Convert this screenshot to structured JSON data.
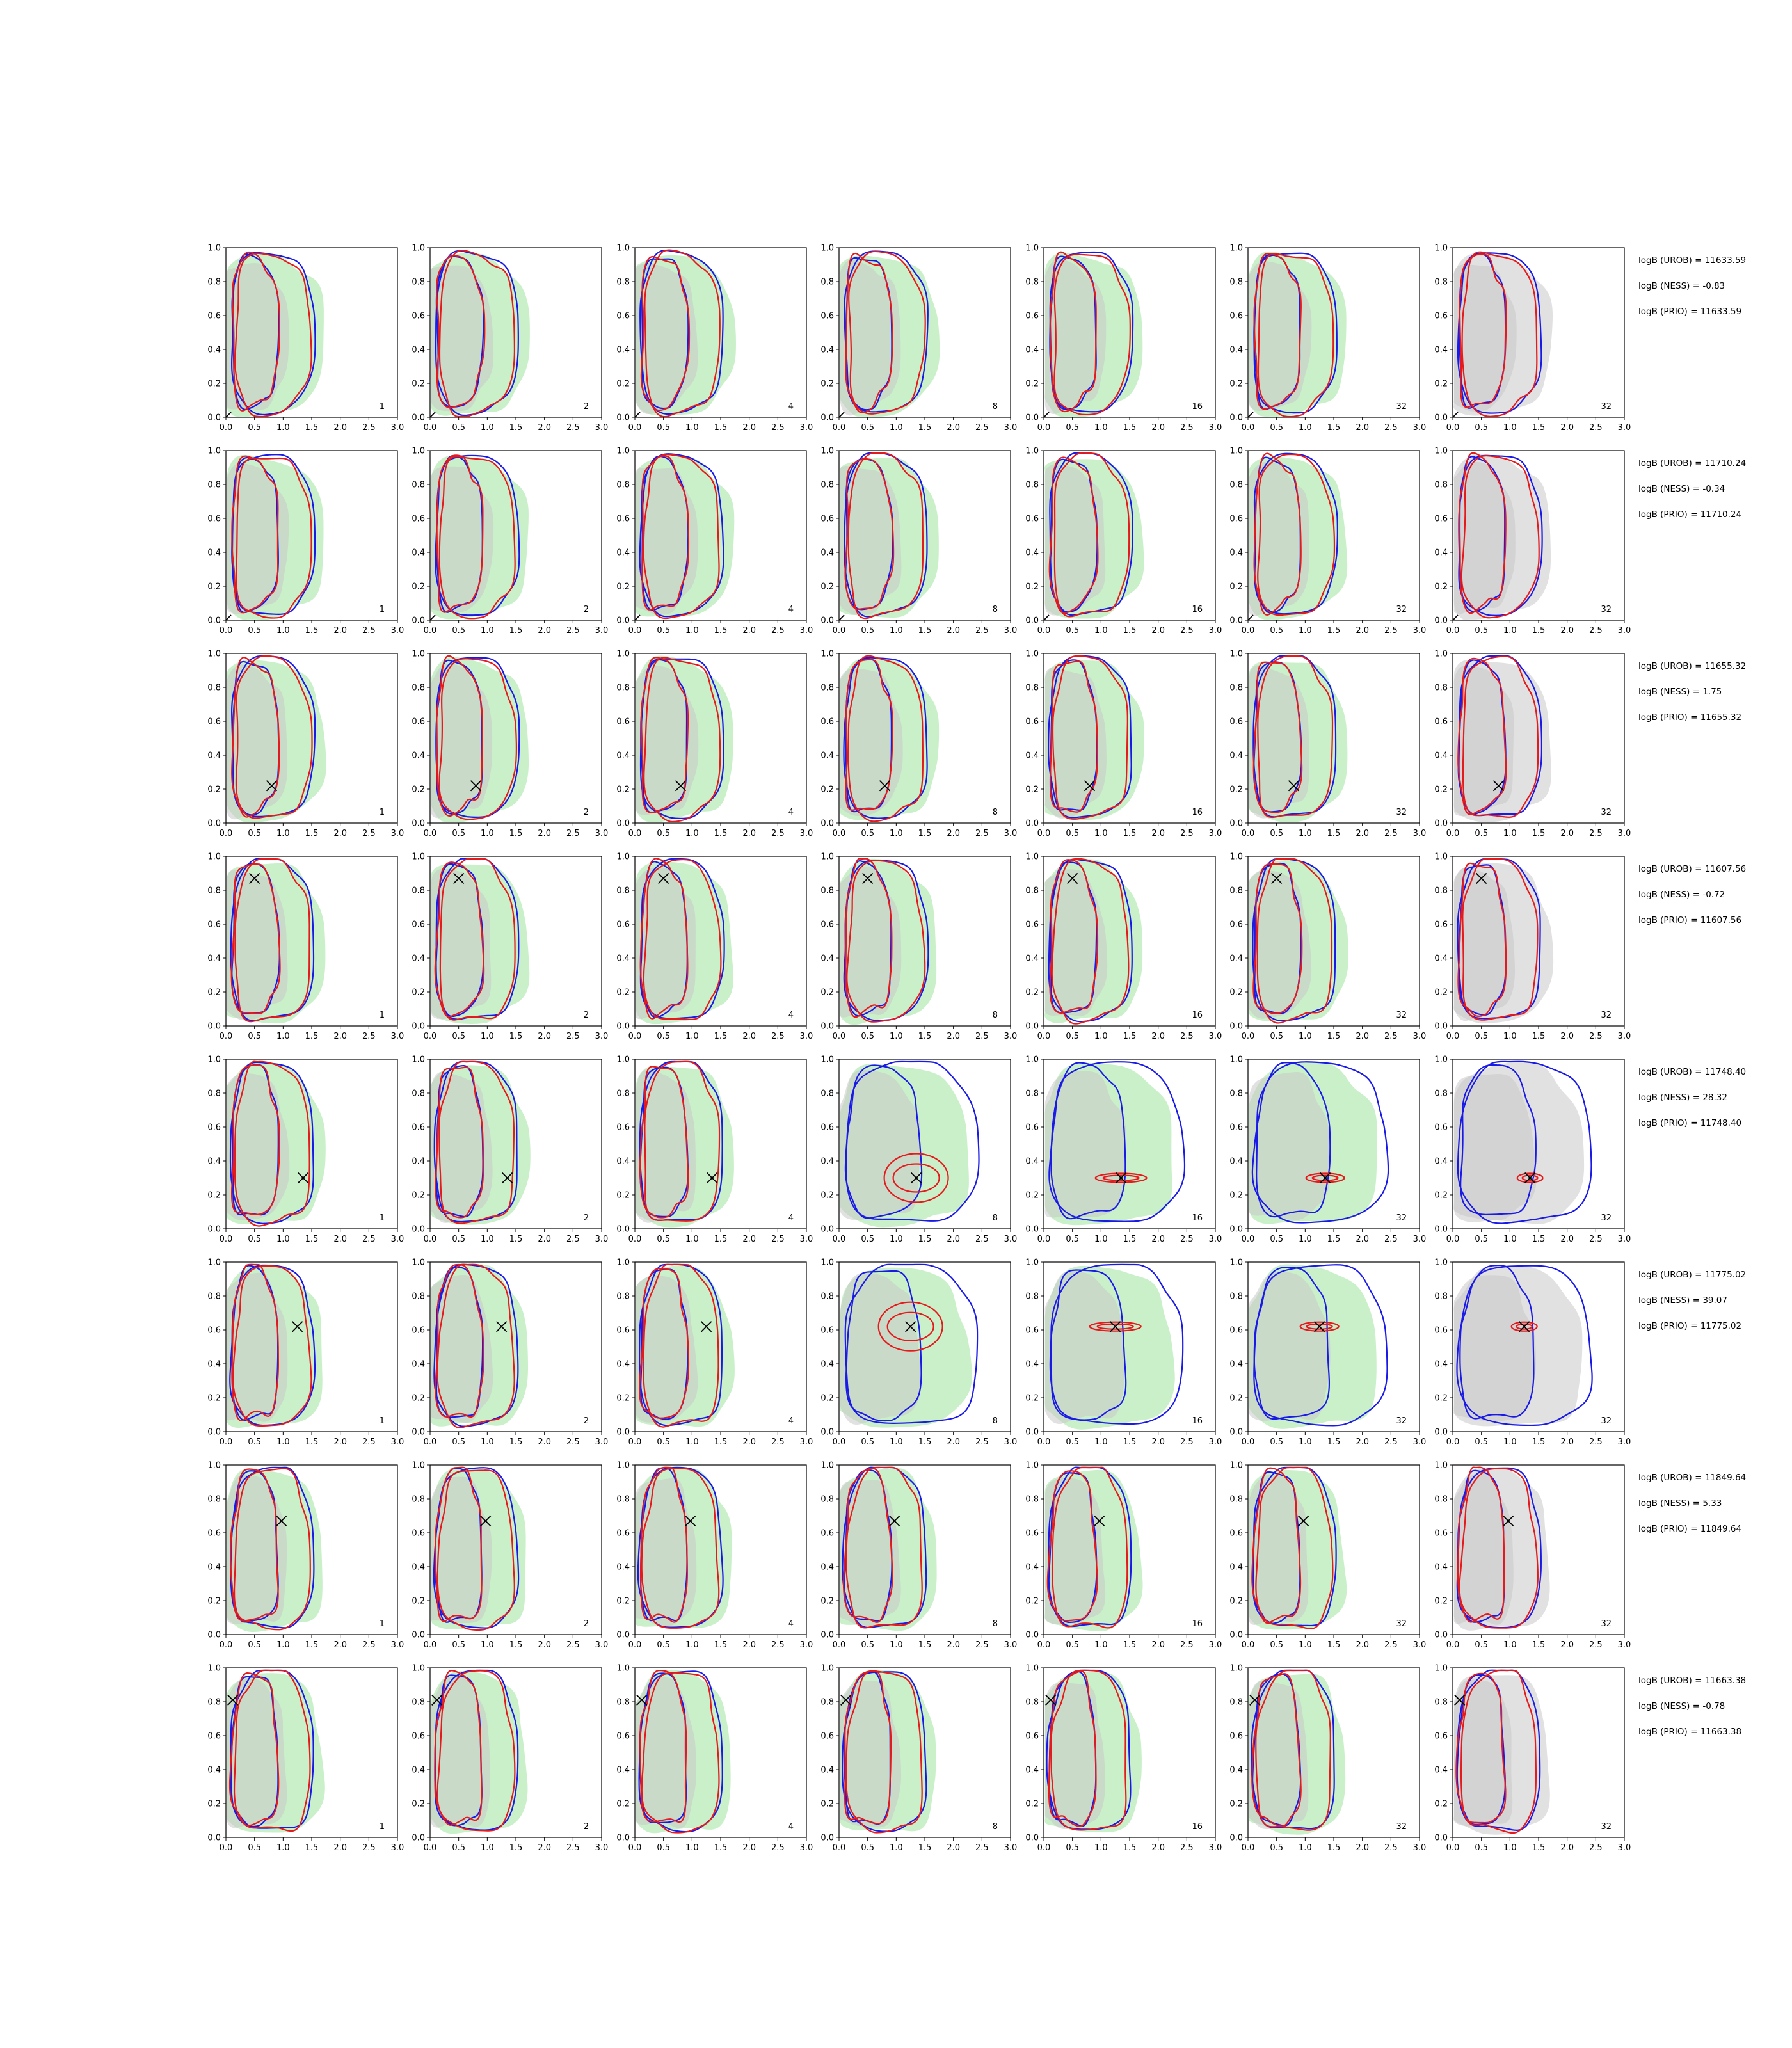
{
  "chart_data": {
    "type": "contour-grid",
    "xlim": [
      0.0,
      3.0
    ],
    "ylim": [
      0.0,
      1.0
    ],
    "x_ticks": [
      "0.0",
      "0.5",
      "1.0",
      "1.5",
      "2.0",
      "2.5",
      "3.0"
    ],
    "y_ticks": [
      "0.0",
      "0.2",
      "0.4",
      "0.6",
      "0.8",
      "1.0"
    ],
    "grid": false,
    "colors": {
      "fill_green": "#a6e6a6",
      "fill_grey": "#c8c8c8",
      "contour_red": "#e41a1c",
      "contour_blue": "#1a1ae6",
      "marker": "#000000"
    },
    "columns": [
      "1",
      "2",
      "4",
      "8",
      "16",
      "32",
      "32"
    ],
    "rows": [
      {
        "marker": [
          0.0,
          0.0
        ],
        "logB": [
          "logB (UROB) = 11633.59",
          "logB (NESS) = -0.83",
          "logB (PRIO) = 11633.59"
        ]
      },
      {
        "marker": [
          0.0,
          0.0
        ],
        "logB": [
          "logB (UROB) = 11710.24",
          "logB (NESS) = -0.34",
          "logB (PRIO) = 11710.24"
        ]
      },
      {
        "marker": [
          0.8,
          0.22
        ],
        "logB": [
          "logB (UROB) = 11655.32",
          "logB (NESS) = 1.75",
          "logB (PRIO) = 11655.32"
        ]
      },
      {
        "marker": [
          0.5,
          0.87
        ],
        "logB": [
          "logB (UROB) = 11607.56",
          "logB (NESS) = -0.72",
          "logB (PRIO) = 11607.56"
        ]
      },
      {
        "marker": [
          1.35,
          0.3
        ],
        "logB": [
          "logB (UROB) = 11748.40",
          "logB (NESS) = 28.32",
          "logB (PRIO) = 11748.40"
        ]
      },
      {
        "marker": [
          1.25,
          0.62
        ],
        "logB": [
          "logB (UROB) = 11775.02",
          "logB (NESS) = 39.07",
          "logB (PRIO) = 11775.02"
        ]
      },
      {
        "marker": [
          0.97,
          0.67
        ],
        "logB": [
          "logB (UROB) = 11849.64",
          "logB (NESS) = 5.33",
          "logB (PRIO) = 11849.64"
        ]
      },
      {
        "marker": [
          0.12,
          0.81
        ],
        "logB": [
          "logB (UROB) = 11663.38",
          "logB (NESS) = -0.78",
          "logB (PRIO) = 11663.38"
        ]
      }
    ]
  }
}
